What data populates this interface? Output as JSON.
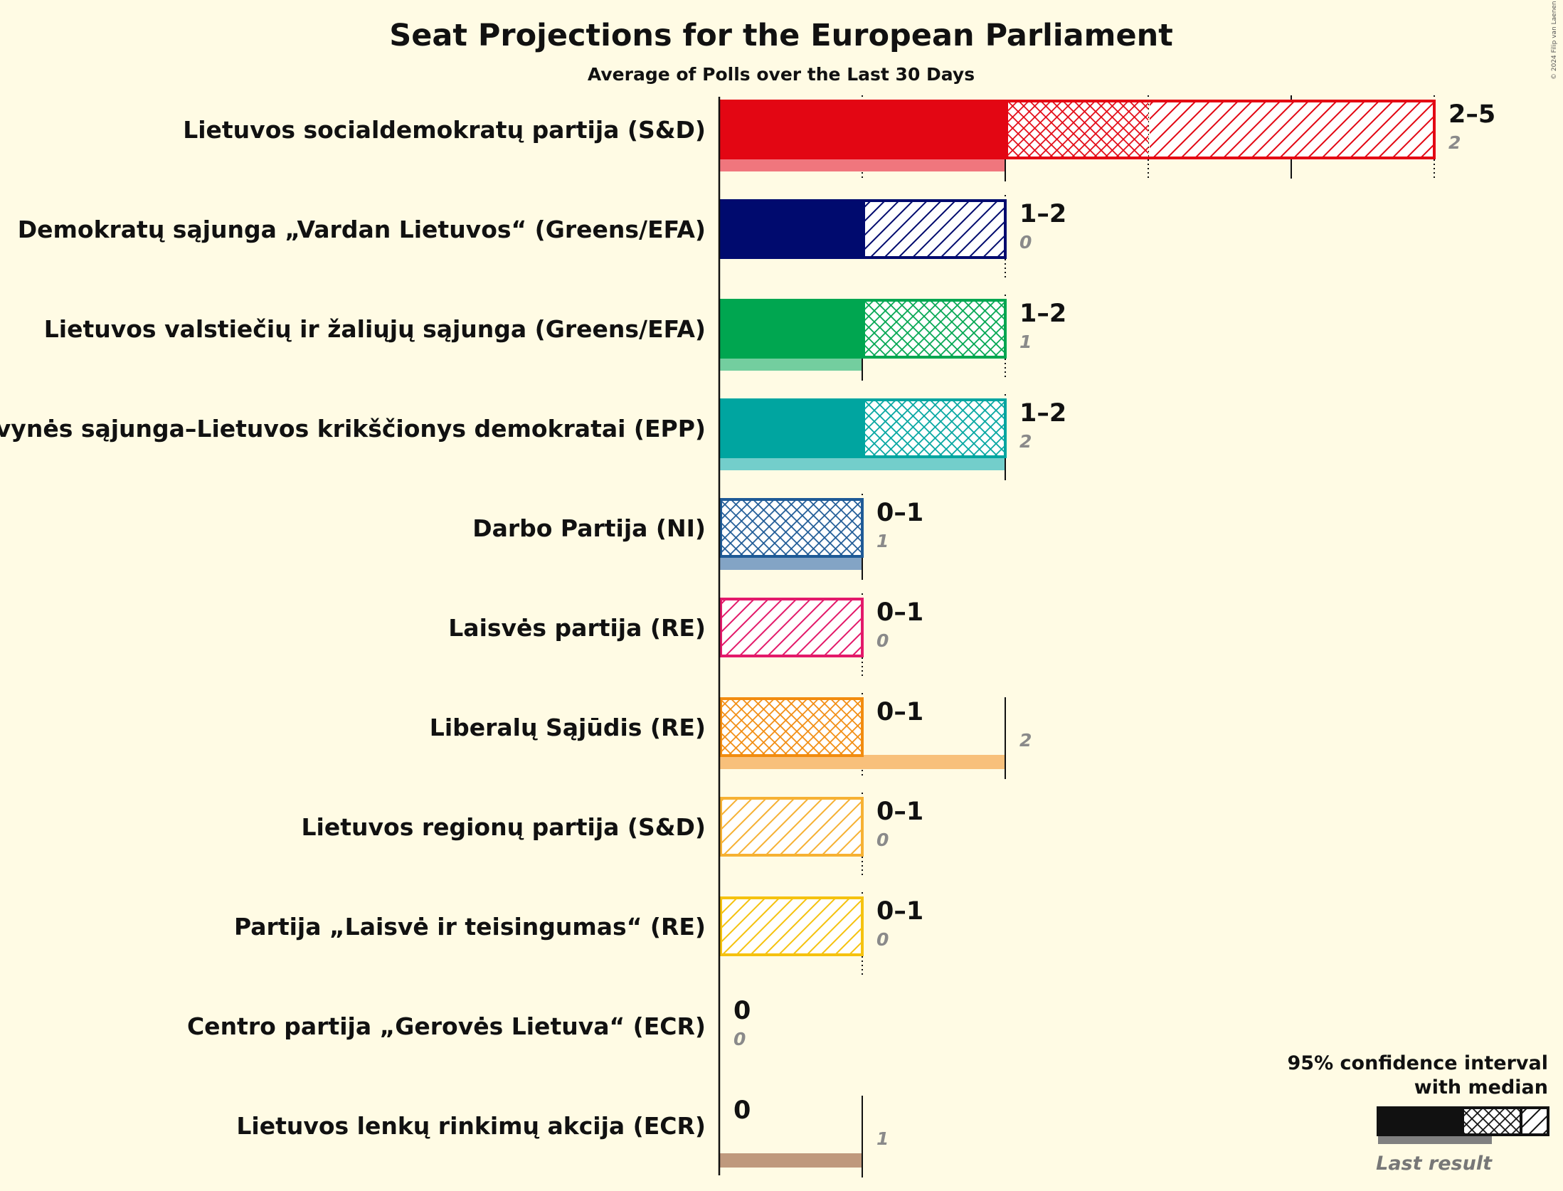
{
  "header": {
    "title": "Seat Projections for the European Parliament",
    "subtitle": "Average of Polls over the Last 30 Days",
    "copyright": "© 2024 Filip van Laenen"
  },
  "legend": {
    "line1": "95% confidence interval",
    "line2": "with median",
    "last_result": "Last result"
  },
  "chart_data": {
    "type": "bar",
    "orientation": "horizontal",
    "title": "Seat Projections for the European Parliament",
    "subtitle": "Average of Polls over the Last 30 Days",
    "xlim": [
      0,
      5
    ],
    "grid": "dotted and solid vertical seat lines",
    "legend_position": "bottom-right",
    "parties": [
      {
        "name": "Lietuvos socialdemokratų partija (S&D)",
        "color": "#e30613",
        "low": 2,
        "median": 3,
        "high": 5,
        "last": 2,
        "range_label": "2–5",
        "last_label": "2"
      },
      {
        "name": "Demokratų sąjunga „Vardan Lietuvos“ (Greens/EFA)",
        "color": "#000a6e",
        "low": 1,
        "median": 1,
        "high": 2,
        "last": 0,
        "range_label": "1–2",
        "last_label": "0"
      },
      {
        "name": "Lietuvos valstiečių ir žaliųjų sąjunga (Greens/EFA)",
        "color": "#00a650",
        "low": 1,
        "median": 2,
        "high": 2,
        "last": 1,
        "range_label": "1–2",
        "last_label": "1"
      },
      {
        "name": "Tėvynės sąjunga–Lietuvos krikščionys demokratai (EPP)",
        "color": "#00a5a0",
        "low": 1,
        "median": 2,
        "high": 2,
        "last": 2,
        "range_label": "1–2",
        "last_label": "2"
      },
      {
        "name": "Darbo Partija (NI)",
        "color": "#1e5a96",
        "low": 0,
        "median": 1,
        "high": 1,
        "last": 1,
        "range_label": "0–1",
        "last_label": "1"
      },
      {
        "name": "Laisvės partija (RE)",
        "color": "#e3196a",
        "low": 0,
        "median": 0,
        "high": 1,
        "last": 0,
        "range_label": "0–1",
        "last_label": "0"
      },
      {
        "name": "Liberalų Sąjūdis (RE)",
        "color": "#f28c0f",
        "low": 0,
        "median": 1,
        "high": 1,
        "last": 2,
        "range_label": "0–1",
        "last_label": "2"
      },
      {
        "name": "Lietuvos regionų partija (S&D)",
        "color": "#f6b133",
        "low": 0,
        "median": 0,
        "high": 1,
        "last": 0,
        "range_label": "0–1",
        "last_label": "0"
      },
      {
        "name": "Partija „Laisvė ir teisingumas“ (RE)",
        "color": "#f5c20f",
        "low": 0,
        "median": 0,
        "high": 1,
        "last": 0,
        "range_label": "0–1",
        "last_label": "0"
      },
      {
        "name": "Centro partija „Gerovės Lietuva“ (ECR)",
        "color": "#666666",
        "low": 0,
        "median": 0,
        "high": 0,
        "last": 0,
        "range_label": "0",
        "last_label": "0"
      },
      {
        "name": "Lietuvos lenkų rinkimų akcija (ECR)",
        "color": "#8b4513",
        "low": 0,
        "median": 0,
        "high": 0,
        "last": 1,
        "range_label": "0",
        "last_label": "1"
      }
    ]
  }
}
